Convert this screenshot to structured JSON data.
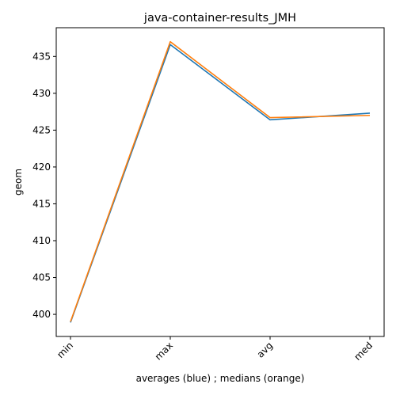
{
  "chart_data": {
    "type": "line",
    "title": "java-container-results_JMH",
    "xlabel": "averages (blue) ; medians (orange)",
    "ylabel": "geom",
    "categories": [
      "min",
      "max",
      "avg",
      "med"
    ],
    "series": [
      {
        "color": "#1f77b4",
        "values": [
          398.9,
          436.6,
          426.4,
          427.3
        ]
      },
      {
        "color": "#ff7f0e",
        "values": [
          399.0,
          437.0,
          426.7,
          427.0
        ]
      }
    ],
    "yticks": [
      400,
      405,
      410,
      415,
      420,
      425,
      430,
      435
    ],
    "ylim": [
      397.0,
      438.9
    ],
    "grid": false,
    "legend": "none"
  }
}
